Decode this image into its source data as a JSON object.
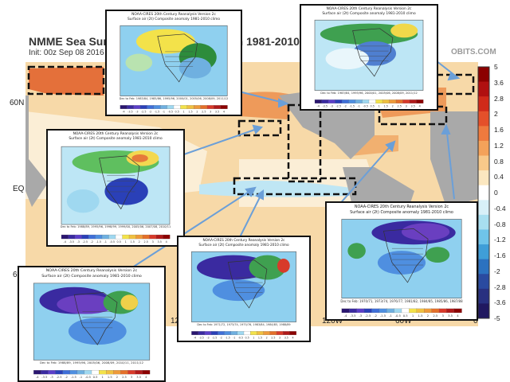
{
  "main_map": {
    "title": "NMME Sea Surface",
    "title_continued": "on 1981-2010 M",
    "init": "Init: 00z Sep 08 2016",
    "brand": "OBITS.COM",
    "lat_labels": [
      "60N",
      "EQ",
      "6"
    ],
    "lon_labels": [
      "12",
      "120W",
      "60W",
      "0"
    ],
    "colorbar": {
      "labels": [
        "5",
        "3.6",
        "2.8",
        "2",
        "1.6",
        "1.2",
        "0.8",
        "0.4",
        "0",
        "-0.4",
        "-0.8",
        "-1.2",
        "-1.6",
        "-2",
        "-2.8",
        "-3.6",
        "-5"
      ],
      "colors": [
        "#8b0000",
        "#b01010",
        "#d02a1a",
        "#e4502a",
        "#ee7a3e",
        "#f4a25a",
        "#f8c98a",
        "#fbe7c0",
        "#ffffff",
        "#d8f0f8",
        "#a8dff0",
        "#6fc4ea",
        "#3f9ed8",
        "#2c72c0",
        "#2a4aa0",
        "#283080",
        "#201860"
      ]
    }
  },
  "insets": [
    {
      "id": "inset-top-left",
      "title": "NOAA-CIRES 20th Century Reanalysis Version 2c",
      "subtitle": "Surface air (2t) Composite anomaly 1981-2010 climo",
      "caption": "Dec to Feb: 1983/84, 1985/86, 1995/96, 2000/01, 2005/06, 2008/09, 2011/12",
      "scale": [
        "-4",
        "-3.5",
        "-3",
        "-2.5",
        "-2",
        "-1.5",
        "-1",
        "-0.5",
        "0.5",
        "1",
        "1.5",
        "2",
        "2.5",
        "3",
        "3.5",
        "4"
      ]
    },
    {
      "id": "inset-top-right",
      "title": "NOAA-CIRES 20th Century Reanalysis Version 2c",
      "subtitle": "Surface air (2t) Composite anomaly 1981-2010 climo",
      "caption": "Dec to Feb: 1983/84, 1995/96, 2000/01, 2005/06, 2008/09, 2011/12",
      "scale": [
        "-4",
        "-3.5",
        "-3",
        "-2.5",
        "-2",
        "-1.5",
        "-1",
        "-0.5",
        "0.5",
        "1",
        "1.5",
        "2",
        "2.5",
        "3",
        "3.5",
        "4"
      ]
    },
    {
      "id": "inset-mid-left",
      "title": "NOAA-CIRES 20th Century Reanalysis Version 2c",
      "subtitle": "Surface air (2t) Composite anomaly 1981-2010 climo",
      "caption": "Dec to Feb: 1988/89, 1995/96, 1998/99, 1999/00, 2005/06, 2007/08, 2010/11",
      "scale": [
        "-4",
        "-3.5",
        "-3",
        "-2.5",
        "-2",
        "-1.5",
        "-1",
        "-0.5",
        "0.5",
        "1",
        "1.5",
        "2",
        "2.5",
        "3",
        "3.5",
        "4"
      ]
    },
    {
      "id": "inset-bottom-left",
      "title": "NOAA-CIRES 20th Century Reanalysis Version 2c",
      "subtitle": "Surface air (2t) Composite anomaly 1981-2010 climo",
      "caption": "Dec to Feb: 1988/89, 1995/96, 2005/06, 2008/09, 2010/11, 2011/12",
      "scale": [
        "-4",
        "-3.5",
        "-3",
        "-2.5",
        "-2",
        "-1.5",
        "-1",
        "-0.5",
        "0.5",
        "1",
        "1.5",
        "2",
        "2.5",
        "3",
        "3.5",
        "4"
      ]
    },
    {
      "id": "inset-bottom-center",
      "title": "NOAA-CIRES 20th Century Reanalysis Version 2c",
      "subtitle": "Surface air (2t) Composite anomaly 1981-2010 climo",
      "caption": "Dec to Feb: 1971/72, 1973/74, 1975/76, 1983/84, 1984/85, 1988/89",
      "scale": [
        "-4",
        "-3.5",
        "-3",
        "-2.5",
        "-2",
        "-1.5",
        "-1",
        "-0.5",
        "0.5",
        "1",
        "1.5",
        "2",
        "2.5",
        "3",
        "3.5",
        "4"
      ]
    },
    {
      "id": "inset-bottom-right",
      "title": "NOAA-CIRES 20th Century Reanalysis Version 2c",
      "subtitle": "Surface air (2t) Composite anomaly 1981-2010 climo",
      "caption": "Dec to Feb: 1970/71, 1973/74, 1976/77, 1981/82, 1984/85, 1985/86, 1987/88",
      "scale": [
        "-4",
        "-3.5",
        "-3",
        "-2.5",
        "-2",
        "-1.5",
        "-1",
        "-0.5",
        "0.5",
        "1",
        "1.5",
        "2",
        "2.5",
        "3",
        "3.5",
        "4"
      ]
    }
  ],
  "colors": {
    "ocean_warm": "#f7d9a8",
    "ocean_pale": "#fbeed6",
    "ocean_hot": "#e4703a",
    "ocean_cool": "#bfe6f4",
    "land": "#a9a9a9",
    "arrow": "#6b9fd8",
    "box_border": "#111111"
  }
}
